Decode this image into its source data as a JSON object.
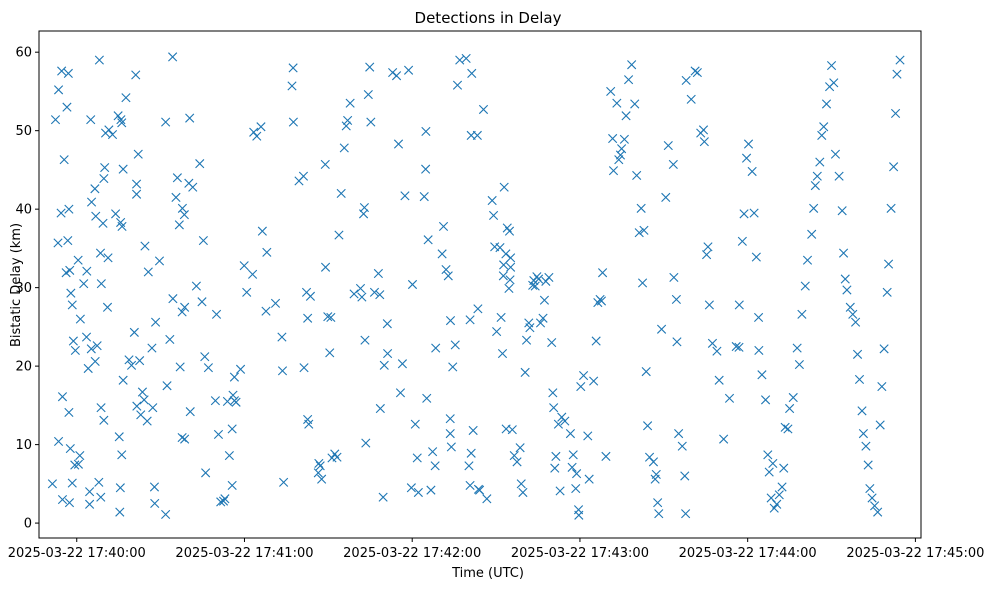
{
  "chart_data": {
    "type": "scatter",
    "title": "Detections in Delay",
    "xlabel": "Time (UTC)",
    "ylabel": "Bistatic Delay (km)",
    "marker": "x",
    "color": "#1f77b4",
    "xlim_seconds": [
      -13.5,
      302
    ],
    "ylim": [
      -1.9,
      62.7
    ],
    "x_ticks": [
      {
        "t": 0,
        "label": "2025-03-22 17:40:00"
      },
      {
        "t": 60,
        "label": "2025-03-22 17:41:00"
      },
      {
        "t": 120,
        "label": "2025-03-22 17:42:00"
      },
      {
        "t": 180,
        "label": "2025-03-22 17:43:00"
      },
      {
        "t": 240,
        "label": "2025-03-22 17:44:00"
      },
      {
        "t": 300,
        "label": "2025-03-22 17:45:00"
      }
    ],
    "y_ticks": [
      0,
      10,
      20,
      30,
      40,
      50,
      60
    ],
    "x_unit": "seconds after 2025-03-22 17:40:00 UTC",
    "points": [
      [
        -7.6,
        51.4
      ],
      [
        -6.5,
        55.2
      ],
      [
        -5.4,
        57.6
      ],
      [
        -3.5,
        53.0
      ],
      [
        -3.0,
        57.3
      ],
      [
        -5.6,
        39.5
      ],
      [
        -4.5,
        46.3
      ],
      [
        -3.2,
        36.0
      ],
      [
        -2.8,
        40.0
      ],
      [
        -3.8,
        31.9
      ],
      [
        -2.5,
        32.2
      ],
      [
        -6.7,
        35.7
      ],
      [
        -1.6,
        27.8
      ],
      [
        -2.1,
        29.3
      ],
      [
        -1.2,
        23.2
      ],
      [
        -0.5,
        22.0
      ],
      [
        -5.1,
        16.1
      ],
      [
        -2.8,
        14.1
      ],
      [
        -6.5,
        10.4
      ],
      [
        -2.3,
        9.5
      ],
      [
        -0.7,
        7.4
      ],
      [
        -1.6,
        5.1
      ],
      [
        -5.1,
        3.0
      ],
      [
        -2.6,
        2.6
      ],
      [
        -8.7,
        5.0
      ],
      [
        1.1,
        8.6
      ],
      [
        0.6,
        7.5
      ],
      [
        0.5,
        33.5
      ],
      [
        1.3,
        26.0
      ],
      [
        2.5,
        30.5
      ],
      [
        3.6,
        32.1
      ],
      [
        3.5,
        23.7
      ],
      [
        5.2,
        22.2
      ],
      [
        4.1,
        19.7
      ],
      [
        6.6,
        20.6
      ],
      [
        7.3,
        22.6
      ],
      [
        5.0,
        51.4
      ],
      [
        5.3,
        40.9
      ],
      [
        6.5,
        42.6
      ],
      [
        6.8,
        39.1
      ],
      [
        9.4,
        38.2
      ],
      [
        11.2,
        33.8
      ],
      [
        8.5,
        34.4
      ],
      [
        9.7,
        43.9
      ],
      [
        10.0,
        45.3
      ],
      [
        8.7,
        14.7
      ],
      [
        8.6,
        3.3
      ],
      [
        7.9,
        5.2
      ],
      [
        4.6,
        4.0
      ],
      [
        4.6,
        2.4
      ],
      [
        9.7,
        13.1
      ],
      [
        11.0,
        27.5
      ],
      [
        8.8,
        30.5
      ],
      [
        8.1,
        59.0
      ],
      [
        10.3,
        49.7
      ],
      [
        11.5,
        50.1
      ],
      [
        12.8,
        49.5
      ],
      [
        13.9,
        39.4
      ],
      [
        15.7,
        38.3
      ],
      [
        16.2,
        37.8
      ],
      [
        16.6,
        45.1
      ],
      [
        15.8,
        51.4
      ],
      [
        14.8,
        51.9
      ],
      [
        16.1,
        51.0
      ],
      [
        17.6,
        54.2
      ],
      [
        21.1,
        57.1
      ],
      [
        22.0,
        47.0
      ],
      [
        21.4,
        43.2
      ],
      [
        21.4,
        41.9
      ],
      [
        16.6,
        18.2
      ],
      [
        16.1,
        8.7
      ],
      [
        15.6,
        4.5
      ],
      [
        15.4,
        1.4
      ],
      [
        15.2,
        11.0
      ],
      [
        19.6,
        20.1
      ],
      [
        18.7,
        20.8
      ],
      [
        20.6,
        24.3
      ],
      [
        21.5,
        14.9
      ],
      [
        22.9,
        13.8
      ],
      [
        22.5,
        20.7
      ],
      [
        24.1,
        15.7
      ],
      [
        23.5,
        16.7
      ],
      [
        25.2,
        13.0
      ],
      [
        26.9,
        22.3
      ],
      [
        24.4,
        35.3
      ],
      [
        25.6,
        32.0
      ],
      [
        28.2,
        25.6
      ],
      [
        29.6,
        33.4
      ],
      [
        27.2,
        14.7
      ],
      [
        27.8,
        4.6
      ],
      [
        27.9,
        2.5
      ],
      [
        31.8,
        1.1
      ],
      [
        32.3,
        17.5
      ],
      [
        33.3,
        23.4
      ],
      [
        31.8,
        51.1
      ],
      [
        34.3,
        59.4
      ],
      [
        34.4,
        28.6
      ],
      [
        35.5,
        41.5
      ],
      [
        36.0,
        44.0
      ],
      [
        36.7,
        38.0
      ],
      [
        37.8,
        40.1
      ],
      [
        38.5,
        39.3
      ],
      [
        40.1,
        43.3
      ],
      [
        41.5,
        42.8
      ],
      [
        42.8,
        30.2
      ],
      [
        40.6,
        14.2
      ],
      [
        38.6,
        10.7
      ],
      [
        37.7,
        10.9
      ],
      [
        37.0,
        19.9
      ],
      [
        37.7,
        26.9
      ],
      [
        38.6,
        27.5
      ],
      [
        40.4,
        51.6
      ],
      [
        44.0,
        45.8
      ],
      [
        44.8,
        28.2
      ],
      [
        45.3,
        36.0
      ],
      [
        45.8,
        21.2
      ],
      [
        46.1,
        6.4
      ],
      [
        47.1,
        19.8
      ],
      [
        49.6,
        15.6
      ],
      [
        50.0,
        26.6
      ],
      [
        50.7,
        11.3
      ],
      [
        51.5,
        2.7
      ],
      [
        52.5,
        2.8
      ],
      [
        53.0,
        3.1
      ],
      [
        53.9,
        15.5
      ],
      [
        54.6,
        8.6
      ],
      [
        55.6,
        4.8
      ],
      [
        55.9,
        16.3
      ],
      [
        55.6,
        12.0
      ],
      [
        56.4,
        15.6
      ],
      [
        56.4,
        18.6
      ],
      [
        58.6,
        19.6
      ],
      [
        57.0,
        15.4
      ],
      [
        59.9,
        32.8
      ],
      [
        60.8,
        29.4
      ],
      [
        62.9,
        31.7
      ],
      [
        63.3,
        49.8
      ],
      [
        64.4,
        49.3
      ],
      [
        65.9,
        50.5
      ],
      [
        66.4,
        37.2
      ],
      [
        68.0,
        34.5
      ],
      [
        67.7,
        27.0
      ],
      [
        71.1,
        28.0
      ],
      [
        73.4,
        23.7
      ],
      [
        73.6,
        19.4
      ],
      [
        74.0,
        5.2
      ],
      [
        77.0,
        55.7
      ],
      [
        77.4,
        58.0
      ],
      [
        77.5,
        51.1
      ],
      [
        79.5,
        43.6
      ],
      [
        81.1,
        44.2
      ],
      [
        82.2,
        29.4
      ],
      [
        82.6,
        26.1
      ],
      [
        83.6,
        28.9
      ],
      [
        81.3,
        19.8
      ],
      [
        82.6,
        13.2
      ],
      [
        83.0,
        12.6
      ],
      [
        86.4,
        6.4
      ],
      [
        86.6,
        7.6
      ],
      [
        87.1,
        7.3
      ],
      [
        87.6,
        5.6
      ],
      [
        88.9,
        45.7
      ],
      [
        89.0,
        32.6
      ],
      [
        89.8,
        26.3
      ],
      [
        90.9,
        26.2
      ],
      [
        90.5,
        21.7
      ],
      [
        91.3,
        8.3
      ],
      [
        92.3,
        8.8
      ],
      [
        93.1,
        8.4
      ],
      [
        93.8,
        36.7
      ],
      [
        94.6,
        42.0
      ],
      [
        95.7,
        47.8
      ],
      [
        96.4,
        50.6
      ],
      [
        96.9,
        51.3
      ],
      [
        97.8,
        53.5
      ],
      [
        99.2,
        29.2
      ],
      [
        101.5,
        29.9
      ],
      [
        102.0,
        28.8
      ],
      [
        102.6,
        39.4
      ],
      [
        102.9,
        40.2
      ],
      [
        103.1,
        23.3
      ],
      [
        103.4,
        10.2
      ],
      [
        104.3,
        54.6
      ],
      [
        104.8,
        58.1
      ],
      [
        105.2,
        51.1
      ],
      [
        106.5,
        29.4
      ],
      [
        107.9,
        31.8
      ],
      [
        108.4,
        29.1
      ],
      [
        108.6,
        14.6
      ],
      [
        109.6,
        3.3
      ],
      [
        110.0,
        20.1
      ],
      [
        111.2,
        21.6
      ],
      [
        111.1,
        25.4
      ],
      [
        113.0,
        57.4
      ],
      [
        114.4,
        57.0
      ],
      [
        115.1,
        48.3
      ],
      [
        115.8,
        16.6
      ],
      [
        116.5,
        20.3
      ],
      [
        117.4,
        41.7
      ],
      [
        118.7,
        57.7
      ],
      [
        119.7,
        4.5
      ],
      [
        120.1,
        30.4
      ],
      [
        121.1,
        12.6
      ],
      [
        121.8,
        8.3
      ],
      [
        122.2,
        3.9
      ],
      [
        124.3,
        41.6
      ],
      [
        124.8,
        45.1
      ],
      [
        124.9,
        49.9
      ],
      [
        125.7,
        36.1
      ],
      [
        125.2,
        15.9
      ],
      [
        126.7,
        4.2
      ],
      [
        127.3,
        9.1
      ],
      [
        128.2,
        7.3
      ],
      [
        128.4,
        22.3
      ],
      [
        130.7,
        34.3
      ],
      [
        131.2,
        37.8
      ],
      [
        132.1,
        32.3
      ],
      [
        132.9,
        31.5
      ],
      [
        133.7,
        25.8
      ],
      [
        133.6,
        13.3
      ],
      [
        133.6,
        11.4
      ],
      [
        134.0,
        9.7
      ],
      [
        134.5,
        19.9
      ],
      [
        135.4,
        22.7
      ],
      [
        136.2,
        55.8
      ],
      [
        137.0,
        59.0
      ],
      [
        139.3,
        59.2
      ],
      [
        141.3,
        57.3
      ],
      [
        141.1,
        49.4
      ],
      [
        143.3,
        49.4
      ],
      [
        140.7,
        25.9
      ],
      [
        141.8,
        11.8
      ],
      [
        141.1,
        8.9
      ],
      [
        140.3,
        7.3
      ],
      [
        140.7,
        4.8
      ],
      [
        143.7,
        4.3
      ],
      [
        144.1,
        4.2
      ],
      [
        146.7,
        3.1
      ],
      [
        143.5,
        27.3
      ],
      [
        145.5,
        52.7
      ],
      [
        148.6,
        41.1
      ],
      [
        149.1,
        39.2
      ],
      [
        149.5,
        35.2
      ],
      [
        150.2,
        24.4
      ],
      [
        151.8,
        26.2
      ],
      [
        152.3,
        21.6
      ],
      [
        151.4,
        35.1
      ],
      [
        152.7,
        32.9
      ],
      [
        152.6,
        31.5
      ],
      [
        153.5,
        34.3
      ],
      [
        154.6,
        29.9
      ],
      [
        155.0,
        31.0
      ],
      [
        155.2,
        32.6
      ],
      [
        155.2,
        33.8
      ],
      [
        152.9,
        42.8
      ],
      [
        154.0,
        37.6
      ],
      [
        154.8,
        37.2
      ],
      [
        153.6,
        12.0
      ],
      [
        155.8,
        11.9
      ],
      [
        156.5,
        8.6
      ],
      [
        157.5,
        7.8
      ],
      [
        158.6,
        9.6
      ],
      [
        159.0,
        5.0
      ],
      [
        159.6,
        3.9
      ],
      [
        160.4,
        19.2
      ],
      [
        160.9,
        23.3
      ],
      [
        161.7,
        25.5
      ],
      [
        162.1,
        24.9
      ],
      [
        163.1,
        30.3
      ],
      [
        163.5,
        30.9
      ],
      [
        164.0,
        30.2
      ],
      [
        164.6,
        31.4
      ],
      [
        165.2,
        31.1
      ],
      [
        165.9,
        25.5
      ],
      [
        166.8,
        26.1
      ],
      [
        167.3,
        28.4
      ],
      [
        167.8,
        30.8
      ],
      [
        168.9,
        31.3
      ],
      [
        169.9,
        23.0
      ],
      [
        170.3,
        16.6
      ],
      [
        170.6,
        14.7
      ],
      [
        171.0,
        7.0
      ],
      [
        171.4,
        8.5
      ],
      [
        172.3,
        12.6
      ],
      [
        172.9,
        4.1
      ],
      [
        173.5,
        13.5
      ],
      [
        174.6,
        13.0
      ],
      [
        176.6,
        11.4
      ],
      [
        177.2,
        7.1
      ],
      [
        177.6,
        8.7
      ],
      [
        178.5,
        4.4
      ],
      [
        178.8,
        6.3
      ],
      [
        179.5,
        1.7
      ],
      [
        179.6,
        1.0
      ],
      [
        180.3,
        17.4
      ],
      [
        181.3,
        18.8
      ],
      [
        182.8,
        11.1
      ],
      [
        183.3,
        5.6
      ],
      [
        184.9,
        18.1
      ],
      [
        185.8,
        23.2
      ],
      [
        186.4,
        28.1
      ],
      [
        187.2,
        28.5
      ],
      [
        187.7,
        28.3
      ],
      [
        188.1,
        31.9
      ],
      [
        189.3,
        8.5
      ],
      [
        191.0,
        55.0
      ],
      [
        191.7,
        49.0
      ],
      [
        192.0,
        44.9
      ],
      [
        193.2,
        53.5
      ],
      [
        193.9,
        46.3
      ],
      [
        194.5,
        46.9
      ],
      [
        194.9,
        47.7
      ],
      [
        195.9,
        48.9
      ],
      [
        196.5,
        51.9
      ],
      [
        197.4,
        56.5
      ],
      [
        198.5,
        58.4
      ],
      [
        199.6,
        53.4
      ],
      [
        200.3,
        44.3
      ],
      [
        201.2,
        37.0
      ],
      [
        201.9,
        40.1
      ],
      [
        202.4,
        30.6
      ],
      [
        202.9,
        37.3
      ],
      [
        203.7,
        19.3
      ],
      [
        204.2,
        12.4
      ],
      [
        204.9,
        8.4
      ],
      [
        206.3,
        7.8
      ],
      [
        206.9,
        5.6
      ],
      [
        207.3,
        6.2
      ],
      [
        207.8,
        2.6
      ],
      [
        208.2,
        1.2
      ],
      [
        209.2,
        24.7
      ],
      [
        210.7,
        41.5
      ],
      [
        211.6,
        48.1
      ],
      [
        213.4,
        45.7
      ],
      [
        213.6,
        31.3
      ],
      [
        214.5,
        28.5
      ],
      [
        214.7,
        23.1
      ],
      [
        215.3,
        11.4
      ],
      [
        216.6,
        9.8
      ],
      [
        217.5,
        6.0
      ],
      [
        217.8,
        1.2
      ],
      [
        218.0,
        56.4
      ],
      [
        219.8,
        54.0
      ],
      [
        221.2,
        57.6
      ],
      [
        222.0,
        57.4
      ],
      [
        223.2,
        49.7
      ],
      [
        224.2,
        50.1
      ],
      [
        224.5,
        48.6
      ],
      [
        225.3,
        34.2
      ],
      [
        225.8,
        35.2
      ],
      [
        226.3,
        27.8
      ],
      [
        227.4,
        22.9
      ],
      [
        229.0,
        21.9
      ],
      [
        229.8,
        18.2
      ],
      [
        231.4,
        10.7
      ],
      [
        233.5,
        15.9
      ],
      [
        235.9,
        22.5
      ],
      [
        236.9,
        22.4
      ],
      [
        237.0,
        27.8
      ],
      [
        238.1,
        35.9
      ],
      [
        238.7,
        39.4
      ],
      [
        239.6,
        46.5
      ],
      [
        240.3,
        48.3
      ],
      [
        241.6,
        44.8
      ],
      [
        242.3,
        39.5
      ],
      [
        243.1,
        33.9
      ],
      [
        243.9,
        26.2
      ],
      [
        244.0,
        22.0
      ],
      [
        245.1,
        18.9
      ],
      [
        246.4,
        15.7
      ],
      [
        247.2,
        8.7
      ],
      [
        247.7,
        6.5
      ],
      [
        248.4,
        3.2
      ],
      [
        249.0,
        7.6
      ],
      [
        249.5,
        1.9
      ],
      [
        250.4,
        2.4
      ],
      [
        251.3,
        3.6
      ],
      [
        252.3,
        4.6
      ],
      [
        252.9,
        7.0
      ],
      [
        253.4,
        12.2
      ],
      [
        254.4,
        12.0
      ],
      [
        255.0,
        14.6
      ],
      [
        256.3,
        16.0
      ],
      [
        257.7,
        22.3
      ],
      [
        258.5,
        20.2
      ],
      [
        259.4,
        26.6
      ],
      [
        260.6,
        30.2
      ],
      [
        261.4,
        33.5
      ],
      [
        262.9,
        36.8
      ],
      [
        263.6,
        40.1
      ],
      [
        264.2,
        43.0
      ],
      [
        264.9,
        44.2
      ],
      [
        265.8,
        46.0
      ],
      [
        266.5,
        49.4
      ],
      [
        267.2,
        50.5
      ],
      [
        268.2,
        53.4
      ],
      [
        269.3,
        55.6
      ],
      [
        270.0,
        58.3
      ],
      [
        270.8,
        56.1
      ],
      [
        271.4,
        47.0
      ],
      [
        272.7,
        44.2
      ],
      [
        273.8,
        39.8
      ],
      [
        274.3,
        34.4
      ],
      [
        274.9,
        31.1
      ],
      [
        275.5,
        29.7
      ],
      [
        276.7,
        27.5
      ],
      [
        277.6,
        26.6
      ],
      [
        278.6,
        25.6
      ],
      [
        279.3,
        21.5
      ],
      [
        280.0,
        18.3
      ],
      [
        280.9,
        14.3
      ],
      [
        281.4,
        11.4
      ],
      [
        282.3,
        9.8
      ],
      [
        283.1,
        7.4
      ],
      [
        283.7,
        4.4
      ],
      [
        284.5,
        3.2
      ],
      [
        285.4,
        2.2
      ],
      [
        286.5,
        1.4
      ],
      [
        287.4,
        12.5
      ],
      [
        288.0,
        17.4
      ],
      [
        288.8,
        22.2
      ],
      [
        289.9,
        29.4
      ],
      [
        290.4,
        33.0
      ],
      [
        291.3,
        40.1
      ],
      [
        292.2,
        45.4
      ],
      [
        292.9,
        52.2
      ],
      [
        293.4,
        57.2
      ],
      [
        294.5,
        59.0
      ]
    ]
  }
}
